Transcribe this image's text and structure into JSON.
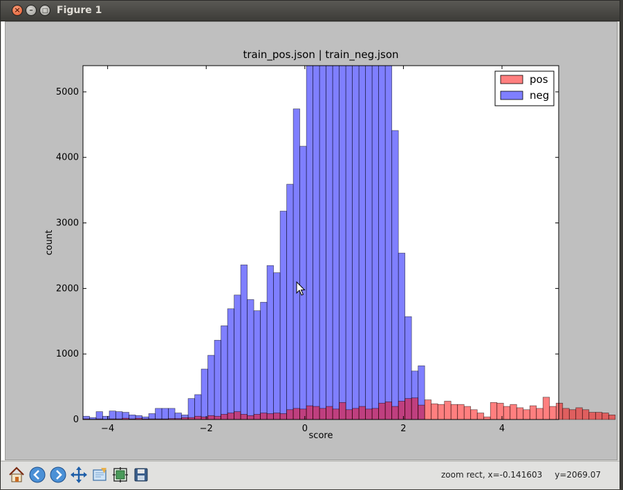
{
  "window": {
    "title": "Figure 1"
  },
  "toolbar": {
    "tools": [
      {
        "name": "home-icon"
      },
      {
        "name": "back-icon"
      },
      {
        "name": "forward-icon"
      },
      {
        "name": "pan-icon"
      },
      {
        "name": "zoom-rect-icon"
      },
      {
        "name": "configure-subplots-icon"
      },
      {
        "name": "save-icon"
      }
    ],
    "status_mode": "zoom rect,",
    "status_x": "x=-0.141603",
    "status_y": "y=2069.07"
  },
  "chart_data": {
    "type": "bar",
    "title": "train_pos.json | train_neg.json",
    "xlabel": "score",
    "ylabel": "count",
    "xlim": [
      -4.5,
      5.15
    ],
    "ylim": [
      0,
      5400
    ],
    "xticks": [
      -4,
      -2,
      0,
      2,
      4
    ],
    "xtick_labels": [
      "−4",
      "−2",
      "0",
      "2",
      "4"
    ],
    "yticks": [
      0,
      1000,
      2000,
      3000,
      4000,
      5000
    ],
    "ytick_labels": [
      "0",
      "1000",
      "2000",
      "3000",
      "4000",
      "5000"
    ],
    "bin_start": -4.5,
    "bin_width": 0.1333,
    "legend_position": "top-right",
    "series": [
      {
        "name": "pos",
        "color": "#ff0000",
        "alpha": 0.5,
        "start_bin": 0,
        "values": [
          10,
          5,
          10,
          5,
          10,
          10,
          20,
          10,
          20,
          10,
          10,
          10,
          10,
          15,
          15,
          30,
          30,
          50,
          40,
          60,
          50,
          80,
          100,
          120,
          80,
          60,
          80,
          100,
          90,
          100,
          90,
          150,
          170,
          160,
          210,
          200,
          170,
          200,
          160,
          260,
          150,
          170,
          200,
          160,
          170,
          250,
          270,
          200,
          280,
          320,
          330,
          220,
          300,
          240,
          230,
          280,
          230,
          230,
          200,
          150,
          100,
          40,
          260,
          250,
          200,
          230,
          180,
          150,
          210,
          170,
          340,
          200,
          250,
          170,
          150,
          180,
          150,
          110,
          110,
          100,
          70
        ]
      },
      {
        "name": "neg",
        "color": "#0000ff",
        "alpha": 0.5,
        "start_bin": 0,
        "values": [
          50,
          30,
          120,
          50,
          130,
          120,
          110,
          70,
          60,
          40,
          90,
          170,
          170,
          170,
          100,
          70,
          320,
          380,
          770,
          980,
          1210,
          1430,
          1690,
          1900,
          2360,
          1830,
          1660,
          1790,
          2350,
          2240,
          3180,
          3590,
          4740,
          4170,
          5400,
          5400,
          5400,
          5400,
          5400,
          5400,
          5400,
          5400,
          5400,
          5400,
          5400,
          5400,
          5400,
          4410,
          2540,
          1570,
          740,
          820
        ]
      }
    ]
  }
}
